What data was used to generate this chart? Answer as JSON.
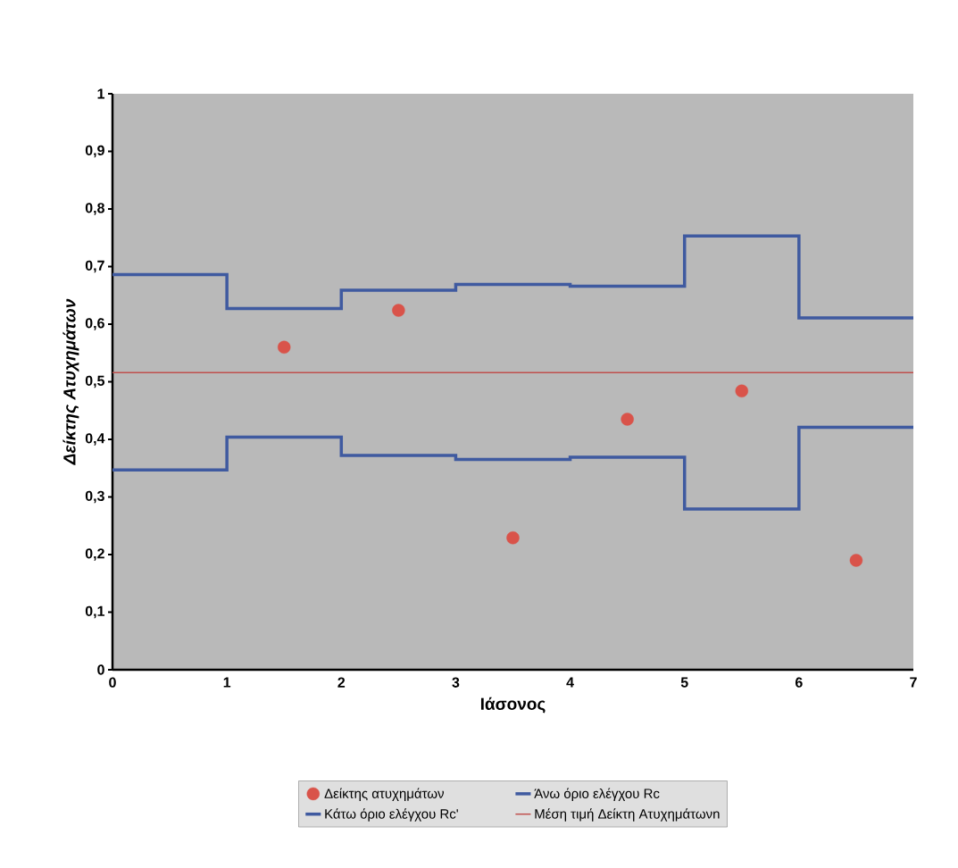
{
  "chart_data": {
    "type": "step",
    "xlabel": "Ιάσονος",
    "ylabel": "Δείκτης Ατυχημάτων",
    "xlim": [
      0,
      7
    ],
    "ylim": [
      0,
      1
    ],
    "xticks": [
      0,
      1,
      2,
      3,
      4,
      5,
      6,
      7
    ],
    "yticks": [
      0,
      {
        "value": 0.1,
        "label": "0,1"
      },
      {
        "value": 0.2,
        "label": "0,2"
      },
      {
        "value": 0.3,
        "label": "0,3"
      },
      {
        "value": 0.4,
        "label": "0,4"
      },
      {
        "value": 0.5,
        "label": "0,5"
      },
      {
        "value": 0.6,
        "label": "0,6"
      },
      {
        "value": 0.7,
        "label": "0,7"
      },
      {
        "value": 0.8,
        "label": "0,8"
      },
      {
        "value": 0.9,
        "label": "0,9"
      },
      1
    ],
    "grid": false,
    "legend": "bottom",
    "series": [
      {
        "name": "Δείκτης ατυχημάτων",
        "type": "scatter",
        "marker": "circle",
        "color": "#d9534a",
        "x": [
          1.5,
          2.5,
          3.5,
          4.5,
          5.5,
          6.5
        ],
        "values": [
          0.56,
          0.624,
          0.229,
          0.435,
          0.484,
          0.19
        ]
      },
      {
        "name": "Άνω όριο ελέγχου Rc",
        "marker": "none",
        "color": "#3f5aa0",
        "x": [
          0,
          1,
          2,
          3,
          4,
          5,
          6,
          7
        ],
        "values": [
          0.686,
          0.627,
          0.659,
          0.669,
          0.666,
          0.753,
          0.611,
          0.611
        ]
      },
      {
        "name": "Κάτω όριο ελέγχου Rc'",
        "marker": "none",
        "color": "#3f5aa0",
        "x": [
          0,
          1,
          2,
          3,
          4,
          5,
          6,
          7
        ],
        "values": [
          0.347,
          0.404,
          0.372,
          0.365,
          0.369,
          0.279,
          0.421,
          0.421
        ]
      },
      {
        "name": "Μέση τιμή Δείκτη Ατυχημάτωνn",
        "type": "line",
        "marker": "none",
        "color": "#c0504d",
        "x": [
          0,
          7
        ],
        "values": [
          0.516,
          0.516
        ]
      }
    ]
  }
}
